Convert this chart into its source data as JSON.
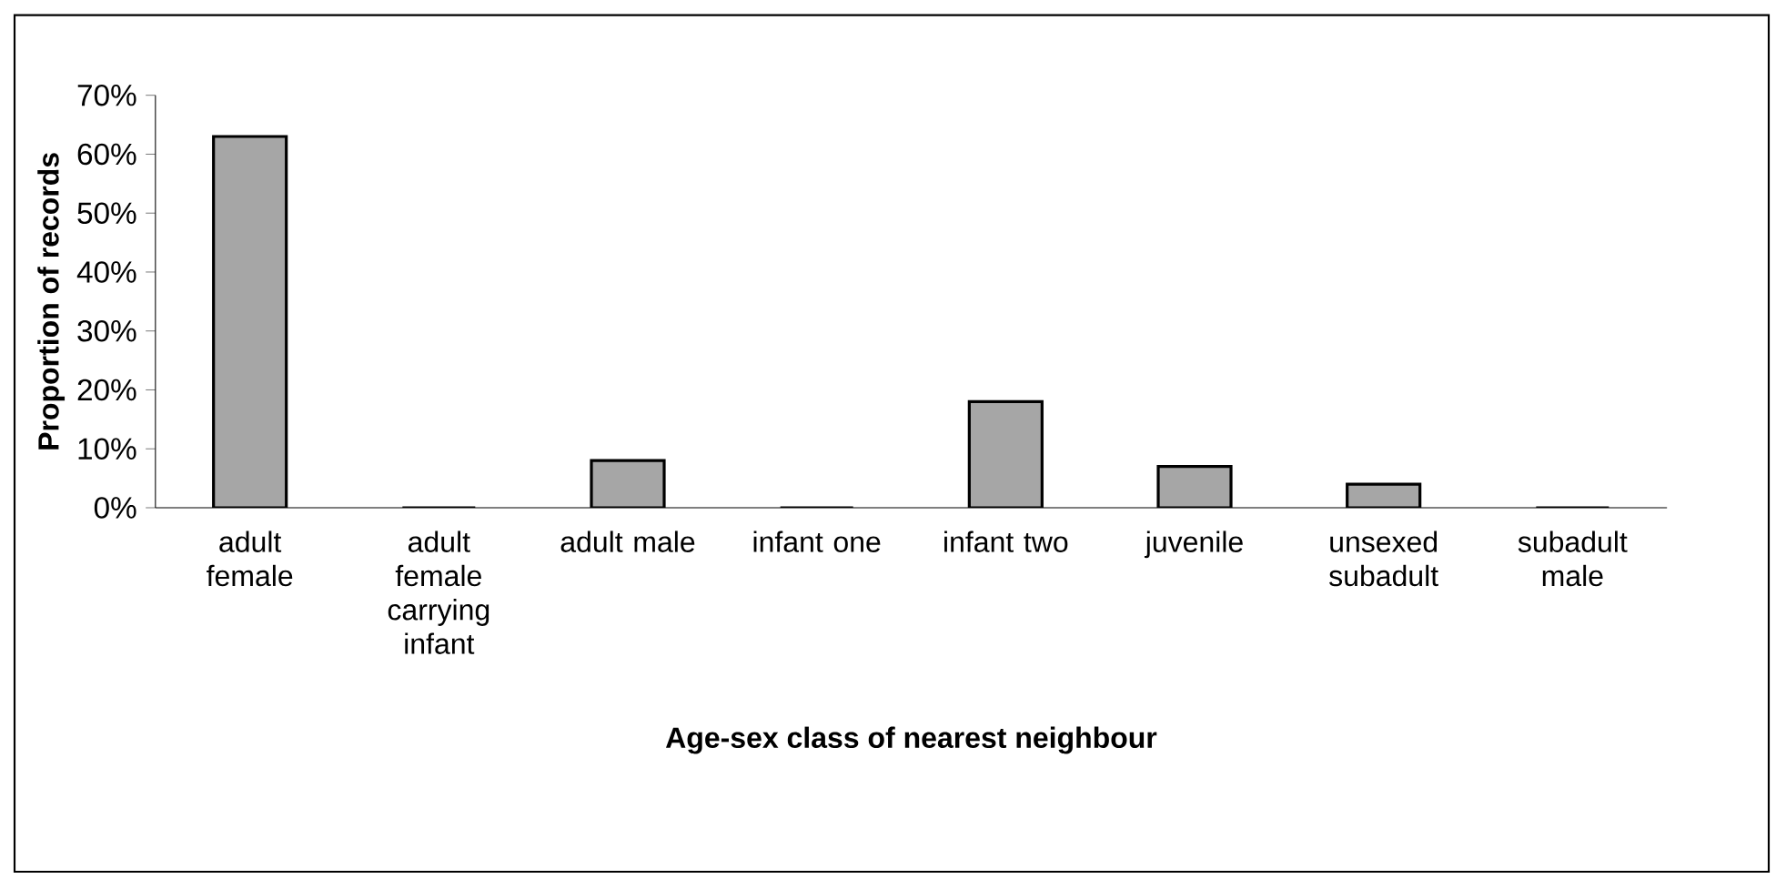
{
  "chart_data": {
    "type": "bar",
    "xlabel": "Age-sex class of nearest neighbour",
    "ylabel": "Proportion of records",
    "categories": [
      "adult female",
      "adult female carrying infant",
      "adult male",
      "infant one",
      "infant two",
      "juvenile",
      "unsexed subadult",
      "subadult male"
    ],
    "values": [
      63,
      0,
      8,
      0,
      18,
      7,
      4,
      0
    ],
    "color": "#a6a6a6",
    "ylim": [
      0,
      70
    ],
    "yticks": [
      {
        "value": 0,
        "label": "0%"
      },
      {
        "value": 10,
        "label": "10%"
      },
      {
        "value": 20,
        "label": "20%"
      },
      {
        "value": 30,
        "label": "30%"
      },
      {
        "value": 40,
        "label": "40%"
      },
      {
        "value": 50,
        "label": "50%"
      },
      {
        "value": 60,
        "label": "60%"
      },
      {
        "value": 70,
        "label": "70%"
      }
    ]
  }
}
